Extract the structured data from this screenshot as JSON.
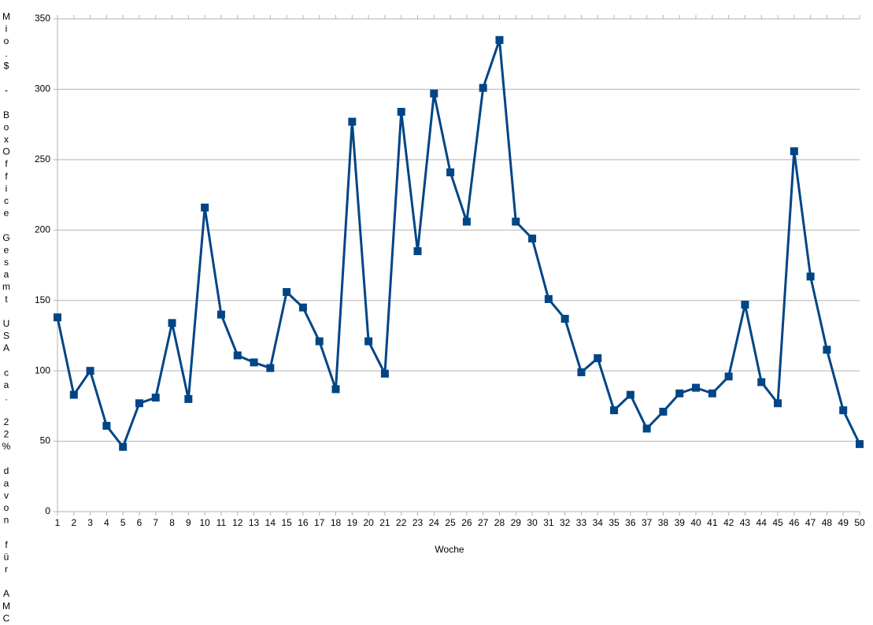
{
  "chart_data": {
    "type": "line",
    "x_label": "Woche",
    "y_label": "Mio.$ - BoxOffice Gesamt USA ca. 22% davon für AMC",
    "x": [
      1,
      2,
      3,
      4,
      5,
      6,
      7,
      8,
      9,
      10,
      11,
      12,
      13,
      14,
      15,
      16,
      17,
      18,
      19,
      20,
      21,
      22,
      23,
      24,
      25,
      26,
      27,
      28,
      29,
      30,
      31,
      32,
      33,
      34,
      35,
      36,
      37,
      38,
      39,
      40,
      41,
      42,
      43,
      44,
      45,
      46,
      47,
      48,
      49,
      50
    ],
    "series": [
      {
        "color": "#004586",
        "values": [
          138,
          83,
          100,
          61,
          46,
          77,
          81,
          134,
          80,
          216,
          140,
          111,
          106,
          102,
          156,
          145,
          121,
          87,
          277,
          121,
          98,
          284,
          185,
          297,
          241,
          206,
          301,
          335,
          206,
          194,
          151,
          137,
          99,
          109,
          72,
          83,
          59,
          71,
          84,
          88,
          84,
          96,
          147,
          92,
          77,
          256,
          167,
          115,
          72,
          48
        ]
      }
    ],
    "xlim": [
      1,
      50
    ],
    "xticks": [
      1,
      2,
      3,
      4,
      5,
      6,
      7,
      8,
      9,
      10,
      11,
      12,
      13,
      14,
      15,
      16,
      17,
      18,
      19,
      20,
      21,
      22,
      23,
      24,
      25,
      26,
      27,
      28,
      29,
      30,
      31,
      32,
      33,
      34,
      35,
      36,
      37,
      38,
      39,
      40,
      41,
      42,
      43,
      44,
      45,
      46,
      47,
      48,
      49,
      50
    ],
    "ylim": [
      0,
      350
    ],
    "yticks": [
      0,
      50,
      100,
      150,
      200,
      250,
      300,
      350
    ],
    "grid": true
  }
}
